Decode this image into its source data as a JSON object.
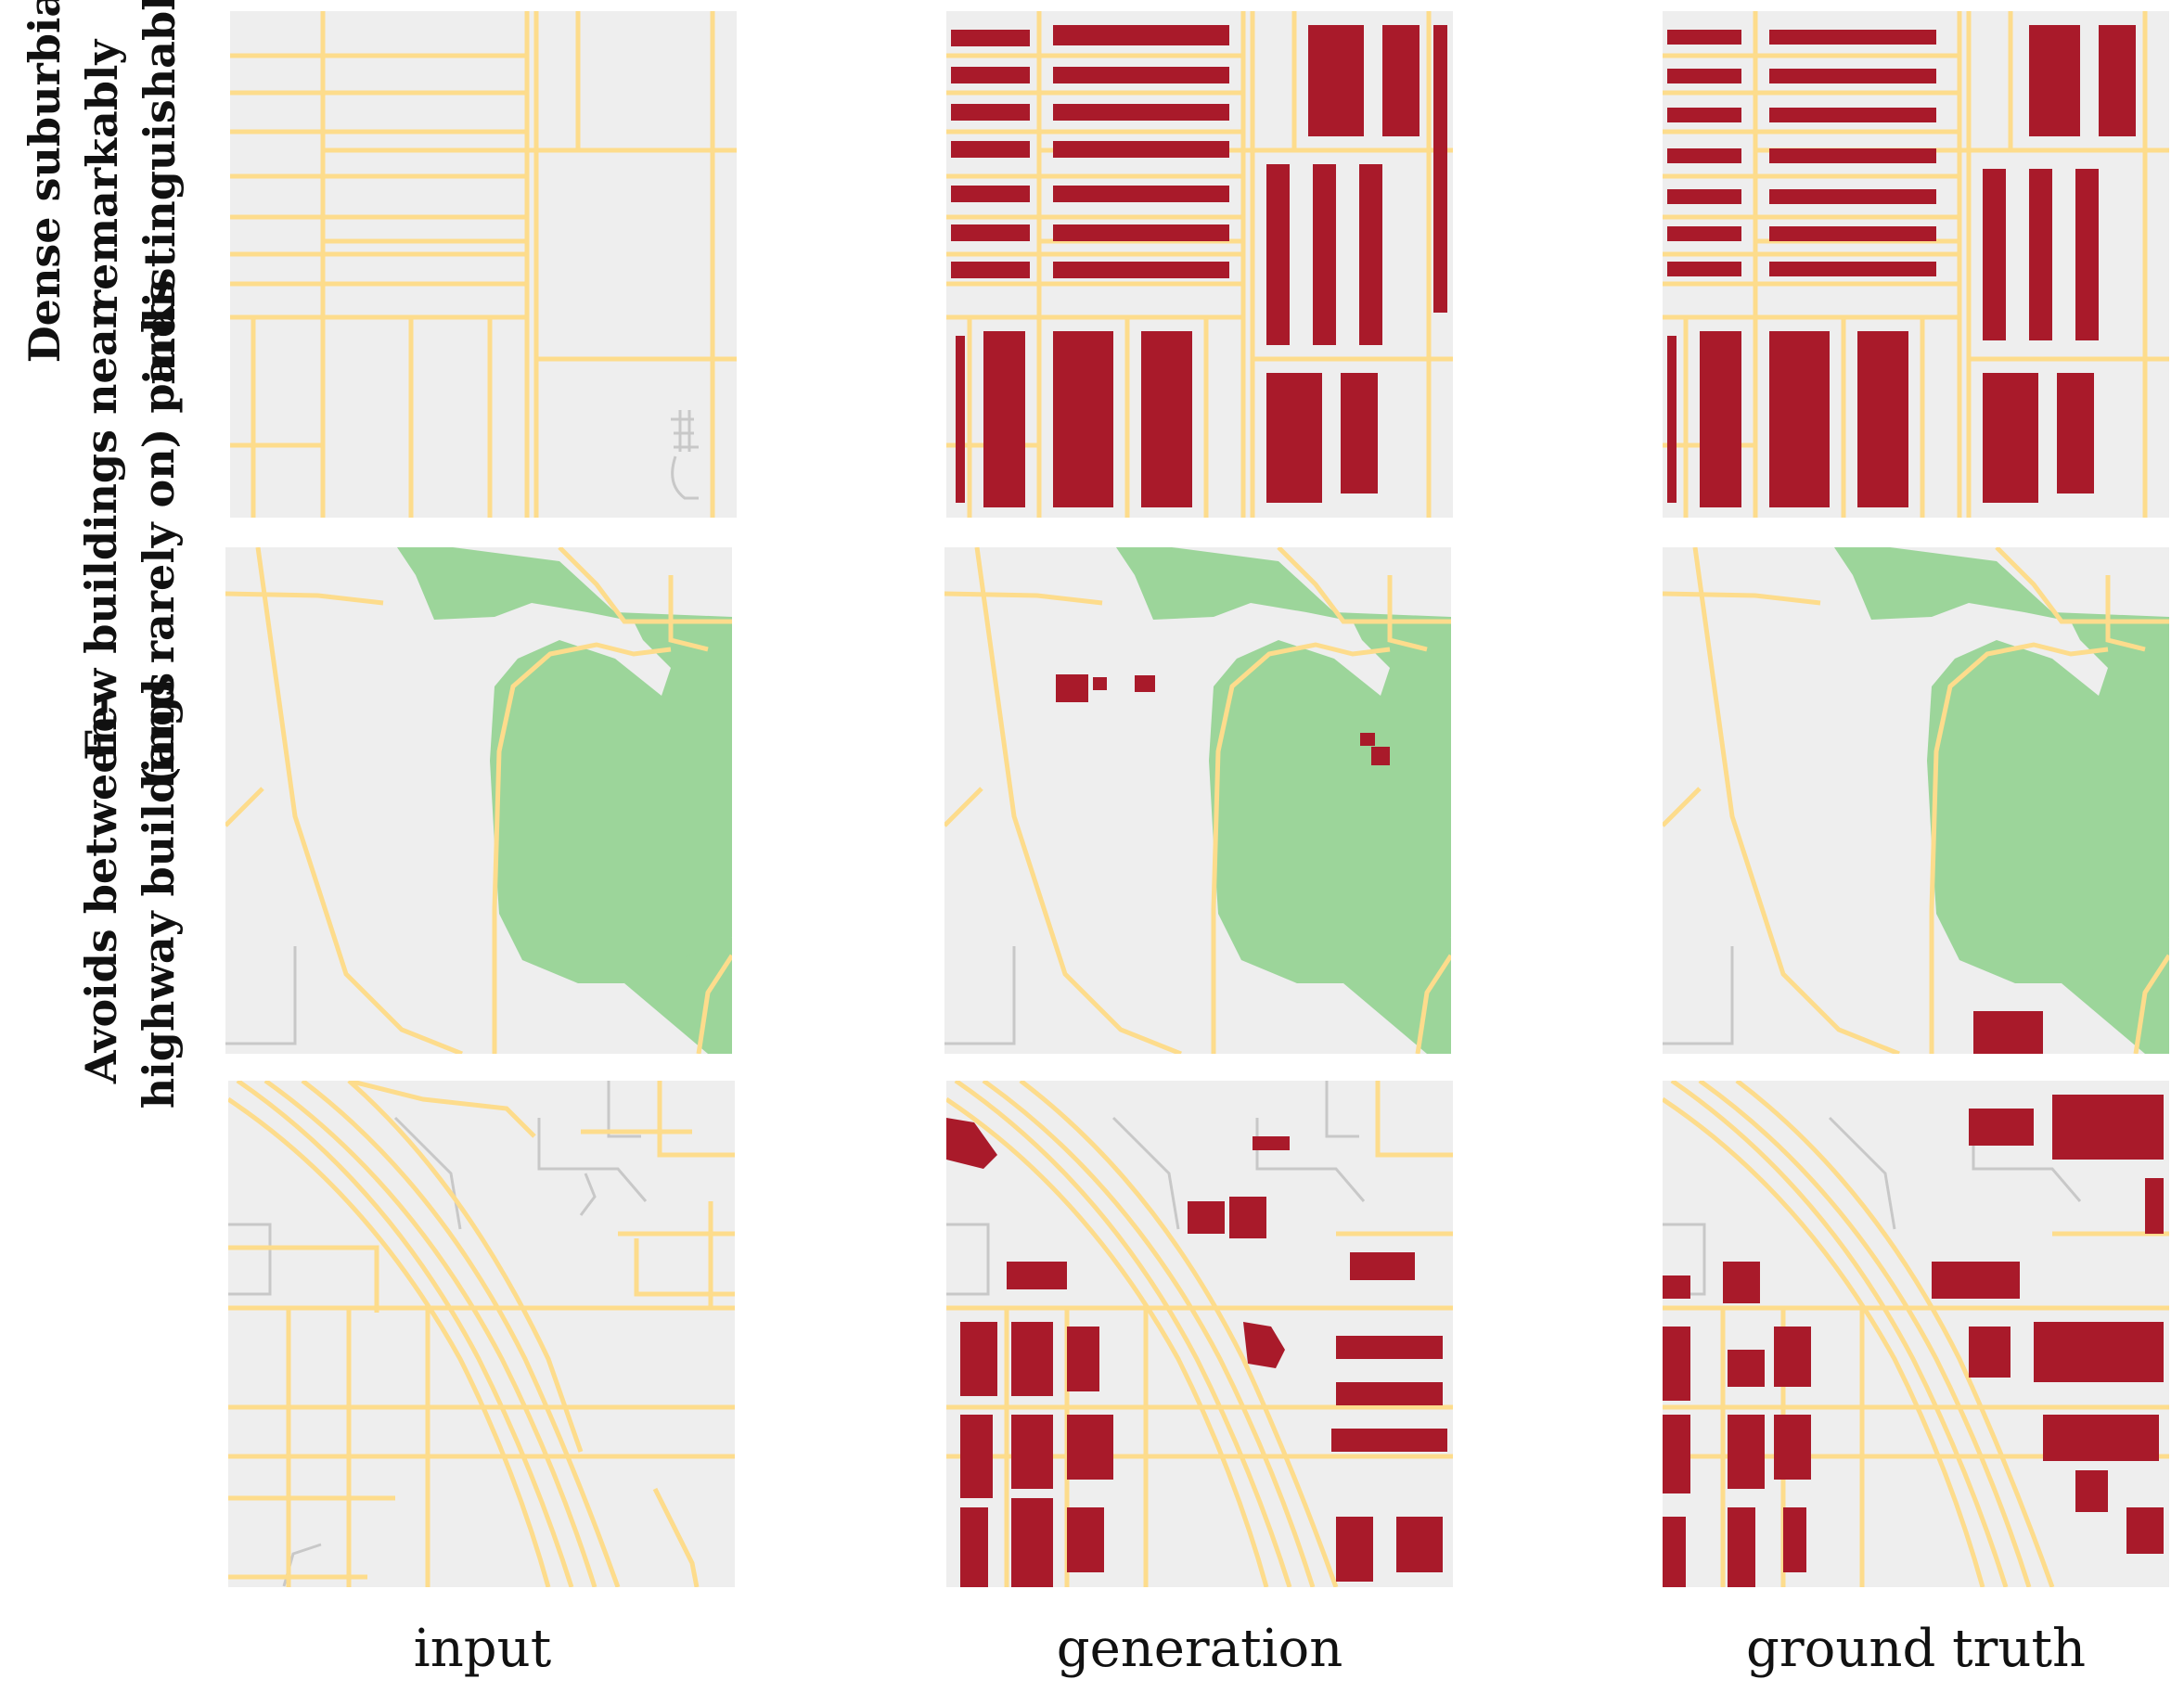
{
  "figure": {
    "rows": [
      {
        "label_line1": "Dense suburbia",
        "label_line2": "remarkably",
        "label_line3": "indistinguishable"
      },
      {
        "label_line1": "Few buildings near",
        "label_line2": "(and rarely on) parks"
      },
      {
        "label_line1": "Avoids between-",
        "label_line2": "highway buildings"
      }
    ],
    "columns": [
      "input",
      "generation",
      "ground truth"
    ]
  },
  "colors": {
    "background": "#eeeeee",
    "road": "#fddc8c",
    "minor_road": "#c8c8c8",
    "park": "#9cd59a",
    "building": "#a91a2a"
  }
}
